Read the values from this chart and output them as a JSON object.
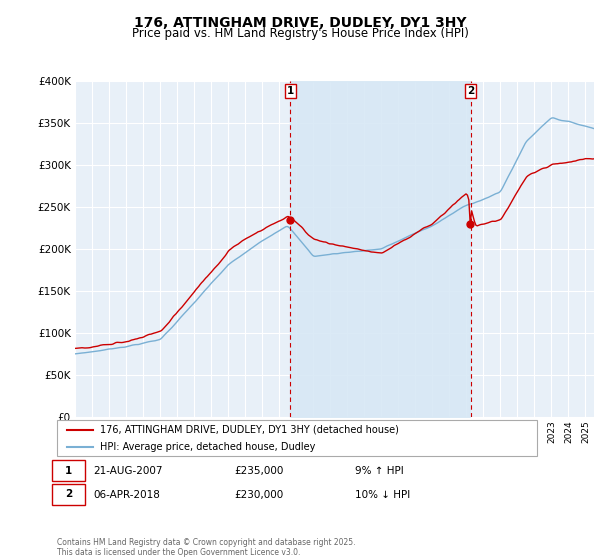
{
  "title": "176, ATTINGHAM DRIVE, DUDLEY, DY1 3HY",
  "subtitle": "Price paid vs. HM Land Registry's House Price Index (HPI)",
  "ytick_vals": [
    0,
    50000,
    100000,
    150000,
    200000,
    250000,
    300000,
    350000,
    400000
  ],
  "ylim": [
    0,
    400000
  ],
  "xlim_start": 1995,
  "xlim_end": 2025.5,
  "marker1": {
    "date_x": 2007.64,
    "price": 235000,
    "label": "1",
    "annotation": "21-AUG-2007",
    "amount": "£235,000",
    "pct": "9% ↑ HPI"
  },
  "marker2": {
    "date_x": 2018.26,
    "price": 230000,
    "label": "2",
    "annotation": "06-APR-2018",
    "amount": "£230,000",
    "pct": "10% ↓ HPI"
  },
  "legend_line1": "176, ATTINGHAM DRIVE, DUDLEY, DY1 3HY (detached house)",
  "legend_line2": "HPI: Average price, detached house, Dudley",
  "footer": "Contains HM Land Registry data © Crown copyright and database right 2025.\nThis data is licensed under the Open Government Licence v3.0.",
  "line_color_red": "#cc0000",
  "line_color_blue": "#7ab0d4",
  "shade_color": "#d8e8f5",
  "background_color": "#e8f0f8",
  "grid_color": "#ffffff",
  "marker_box_color": "#cc0000"
}
